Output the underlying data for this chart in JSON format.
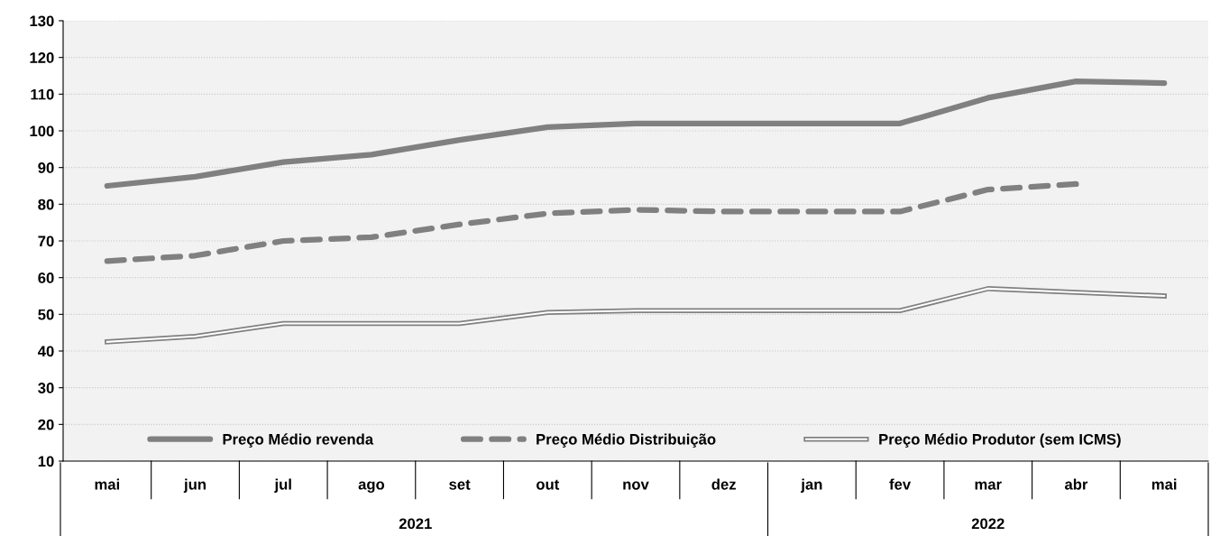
{
  "chart_data": {
    "type": "line",
    "categories": [
      "mai",
      "jun",
      "jul",
      "ago",
      "set",
      "out",
      "nov",
      "dez",
      "jan",
      "fev",
      "mar",
      "abr",
      "mai"
    ],
    "series": [
      {
        "name": "Preço Médio revenda",
        "color": "#808080",
        "line_style": "solid",
        "values": [
          85,
          87.5,
          91.5,
          93.5,
          97.5,
          101,
          102,
          102,
          102,
          102,
          109,
          113.5,
          113
        ]
      },
      {
        "name": "Preço Médio Distribuição",
        "color": "#808080",
        "line_style": "dashed",
        "values": [
          64.5,
          66,
          70,
          71,
          74.5,
          77.5,
          78.5,
          78,
          78,
          78,
          84,
          85.5,
          null
        ]
      },
      {
        "name": "Preço Médio Produtor (sem ICMS)",
        "color": "#808080",
        "line_style": "solid",
        "values": [
          42.5,
          44,
          47.5,
          47.5,
          47.5,
          50.5,
          51,
          51,
          51,
          51,
          57,
          56,
          55
        ]
      }
    ],
    "annotations": [
      "2021",
      "2022"
    ],
    "ylim": [
      10,
      130
    ],
    "yticks": [
      10,
      20,
      30,
      40,
      50,
      60,
      70,
      80,
      90,
      100,
      110,
      120,
      130
    ],
    "grid": "y",
    "legend": "bottom",
    "marker": "none"
  }
}
